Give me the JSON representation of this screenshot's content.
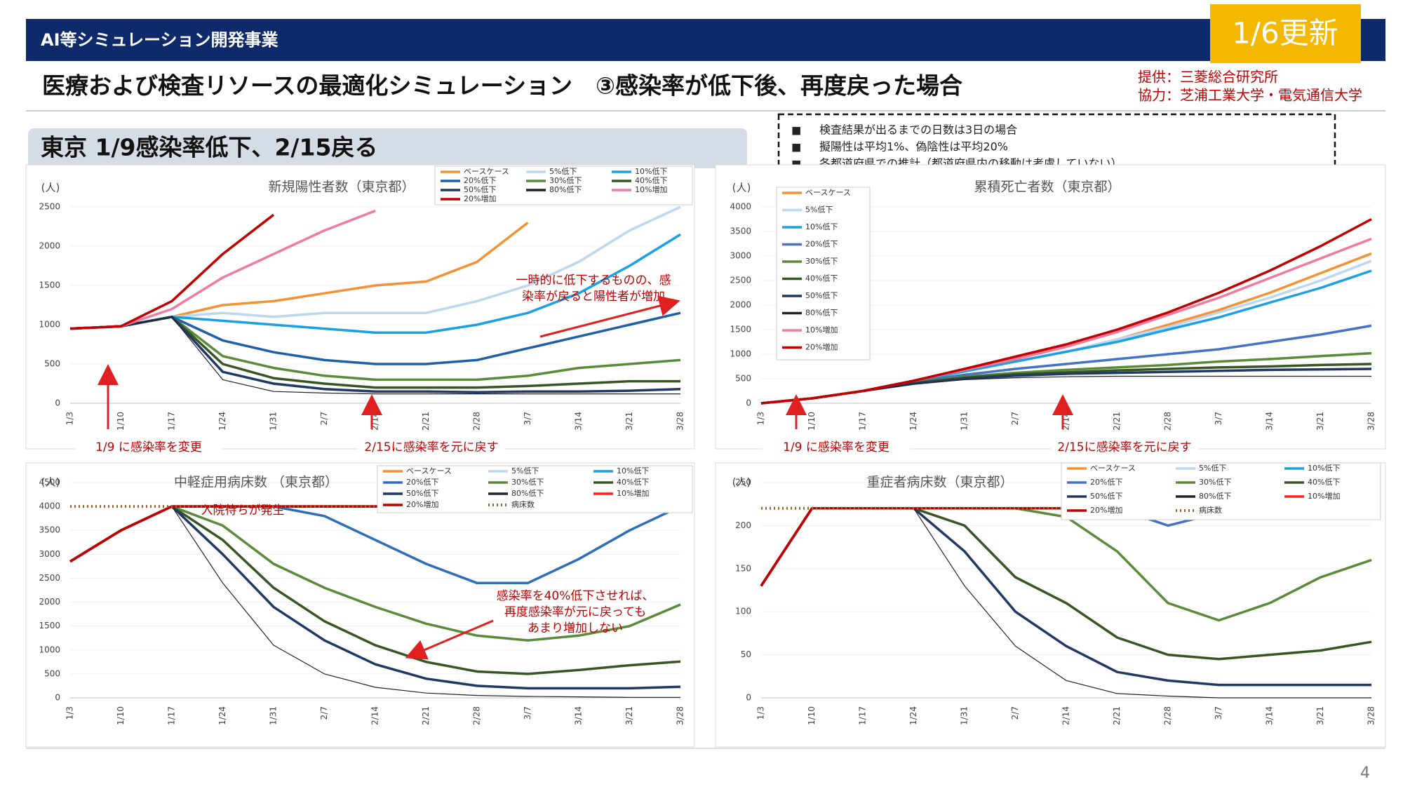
{
  "header": {
    "program": "AI等シミュレーション開発事業",
    "badge": "1/6更新",
    "title": "医療および検査リソースの最適化シミュレーション　③感染率が低下後、再度戻った場合",
    "provider": "提供：三菱総合研究所",
    "cooperation": "協力：芝浦工業大学・電気通信大学",
    "section": "東京 1/9感染率低下、2/15戻る",
    "page": "4"
  },
  "notes": [
    "検査結果が出るまでの日数は3日の場合",
    "擬陽性は平均1%、偽陰性は平均20%",
    "各都道府県での推計（都道府県内の移動は考慮していない）"
  ],
  "chart_data": [
    {
      "type": "line",
      "title": "新規陽性者数（東京都）",
      "y_label": "(人)",
      "categories": [
        "1/3",
        "1/10",
        "1/17",
        "1/24",
        "1/31",
        "2/7",
        "2/14",
        "2/21",
        "2/28",
        "3/7",
        "3/14",
        "3/21",
        "3/28"
      ],
      "ylim": [
        0,
        2500
      ],
      "yticks": [
        0,
        500,
        1000,
        1500,
        2000,
        2500
      ],
      "series": [
        {
          "name": "ベースケース",
          "color": "#f39235",
          "values": [
            950,
            980,
            1100,
            1250,
            1300,
            1400,
            1500,
            1550,
            1800,
            2300,
            null,
            null,
            null
          ]
        },
        {
          "name": "5%低下",
          "color": "#bdd7ee",
          "values": [
            950,
            980,
            1100,
            1150,
            1100,
            1150,
            1150,
            1150,
            1300,
            1500,
            1800,
            2200,
            2500
          ]
        },
        {
          "name": "10%低下",
          "color": "#1ba1e2",
          "values": [
            950,
            980,
            1100,
            1050,
            1000,
            950,
            900,
            900,
            1000,
            1150,
            1400,
            1750,
            2150
          ]
        },
        {
          "name": "20%低下",
          "color": "#1f5fa8",
          "values": [
            950,
            980,
            1100,
            800,
            650,
            550,
            500,
            500,
            550,
            700,
            850,
            1000,
            1150
          ]
        },
        {
          "name": "30%低下",
          "color": "#5a8a3a",
          "values": [
            950,
            980,
            1100,
            600,
            450,
            350,
            300,
            300,
            300,
            350,
            450,
            500,
            550
          ]
        },
        {
          "name": "40%低下",
          "color": "#375623",
          "values": [
            950,
            980,
            1100,
            500,
            320,
            250,
            200,
            200,
            200,
            220,
            250,
            280,
            280
          ]
        },
        {
          "name": "50%低下",
          "color": "#1f3864",
          "values": [
            950,
            980,
            1100,
            400,
            250,
            180,
            150,
            150,
            140,
            150,
            150,
            160,
            180
          ]
        },
        {
          "name": "80%低下",
          "color": "#222222",
          "values": [
            950,
            980,
            1100,
            300,
            150,
            130,
            120,
            120,
            120,
            120,
            120,
            120,
            120
          ]
        },
        {
          "name": "10%増加",
          "color": "#f07ba0",
          "values": [
            950,
            980,
            1200,
            1600,
            1900,
            2200,
            2450,
            null,
            null,
            null,
            null,
            null,
            null
          ]
        },
        {
          "name": "20%増加",
          "color": "#c00000",
          "values": [
            950,
            980,
            1300,
            1900,
            2400,
            null,
            null,
            null,
            null,
            null,
            null,
            null,
            null
          ]
        }
      ],
      "annotations": [
        "1/9 に感染率を変更",
        "2/15に感染率を元に戻す",
        "一時的に低下するものの、感",
        "染率が戻ると陽性者が増加"
      ]
    },
    {
      "type": "line",
      "title": "累積死亡者数（東京都）",
      "y_label": "(人)",
      "categories": [
        "1/3",
        "1/10",
        "1/17",
        "1/24",
        "1/31",
        "2/7",
        "2/14",
        "2/21",
        "2/28",
        "3/7",
        "3/14",
        "3/21",
        "3/28"
      ],
      "ylim": [
        0,
        4000
      ],
      "yticks": [
        0,
        500,
        1000,
        1500,
        2000,
        2500,
        3000,
        3500,
        4000
      ],
      "series": [
        {
          "name": "ベースケース",
          "color": "#f39235",
          "values": [
            0,
            100,
            250,
            450,
            650,
            850,
            1050,
            1300,
            1600,
            1900,
            2250,
            2650,
            3050
          ]
        },
        {
          "name": "5%低下",
          "color": "#bdd7ee",
          "values": [
            0,
            100,
            250,
            450,
            650,
            850,
            1050,
            1300,
            1550,
            1850,
            2150,
            2500,
            2900
          ]
        },
        {
          "name": "10%低下",
          "color": "#1ba1e2",
          "values": [
            0,
            100,
            250,
            450,
            650,
            850,
            1050,
            1250,
            1500,
            1750,
            2050,
            2350,
            2700
          ]
        },
        {
          "name": "20%低下",
          "color": "#4472c4",
          "values": [
            0,
            100,
            250,
            430,
            580,
            700,
            800,
            900,
            1000,
            1100,
            1250,
            1400,
            1580
          ]
        },
        {
          "name": "30%低下",
          "color": "#5a8a3a",
          "values": [
            0,
            100,
            250,
            420,
            540,
            620,
            680,
            730,
            780,
            850,
            900,
            960,
            1020
          ]
        },
        {
          "name": "40%低下",
          "color": "#375623",
          "values": [
            0,
            100,
            250,
            410,
            520,
            590,
            630,
            670,
            700,
            730,
            750,
            780,
            800
          ]
        },
        {
          "name": "50%低下",
          "color": "#1f3864",
          "values": [
            0,
            100,
            250,
            400,
            500,
            560,
            600,
            620,
            640,
            660,
            680,
            690,
            700
          ]
        },
        {
          "name": "80%低下",
          "color": "#222222",
          "values": [
            0,
            100,
            250,
            390,
            480,
            520,
            540,
            550,
            550,
            550,
            550,
            550,
            550
          ]
        },
        {
          "name": "10%増加",
          "color": "#f07ba0",
          "values": [
            0,
            100,
            250,
            460,
            680,
            900,
            1150,
            1450,
            1800,
            2150,
            2550,
            2950,
            3350
          ]
        },
        {
          "name": "20%増加",
          "color": "#c00000",
          "values": [
            0,
            100,
            250,
            460,
            700,
            950,
            1200,
            1500,
            1850,
            2250,
            2700,
            3200,
            3750
          ]
        }
      ],
      "annotations": [
        "1/9 に感染率を変更",
        "2/15に感染率を元に戻す"
      ]
    },
    {
      "type": "line",
      "title": "中軽症用病床数 （東京都）",
      "y_label": "(人)",
      "categories": [
        "1/3",
        "1/10",
        "1/17",
        "1/24",
        "1/31",
        "2/7",
        "2/14",
        "2/21",
        "2/28",
        "3/7",
        "3/14",
        "3/21",
        "3/28"
      ],
      "ylim": [
        0,
        4500
      ],
      "yticks": [
        0,
        500,
        1000,
        1500,
        2000,
        2500,
        3000,
        3500,
        4000,
        4500
      ],
      "series": [
        {
          "name": "ベースケース",
          "color": "#f39235",
          "values": [
            2850,
            3500,
            4000,
            4000,
            4000,
            4000,
            4000,
            4000,
            4000,
            4000,
            4000,
            4000,
            4000
          ]
        },
        {
          "name": "5%低下",
          "color": "#bdd7ee",
          "values": [
            2850,
            3500,
            4000,
            4000,
            4000,
            4000,
            4000,
            4000,
            4000,
            4000,
            4000,
            4000,
            4000
          ]
        },
        {
          "name": "10%低下",
          "color": "#1ba1e2",
          "values": [
            2850,
            3500,
            4000,
            4000,
            4000,
            4000,
            4000,
            4000,
            4000,
            4000,
            4000,
            4000,
            4000
          ]
        },
        {
          "name": "20%低下",
          "color": "#2e6db8",
          "values": [
            2850,
            3500,
            4000,
            4000,
            4000,
            3800,
            3300,
            2800,
            2400,
            2400,
            2900,
            3500,
            4000
          ]
        },
        {
          "name": "30%低下",
          "color": "#5a8a3a",
          "values": [
            2850,
            3500,
            4000,
            3600,
            2800,
            2300,
            1900,
            1550,
            1300,
            1200,
            1300,
            1500,
            1950
          ]
        },
        {
          "name": "40%低下",
          "color": "#375623",
          "values": [
            2850,
            3500,
            4000,
            3300,
            2300,
            1600,
            1100,
            750,
            550,
            500,
            580,
            680,
            760
          ]
        },
        {
          "name": "50%低下",
          "color": "#1f3864",
          "values": [
            2850,
            3500,
            4000,
            3000,
            1900,
            1200,
            700,
            400,
            250,
            200,
            200,
            200,
            230
          ]
        },
        {
          "name": "80%低下",
          "color": "#222222",
          "values": [
            2850,
            3500,
            4000,
            2400,
            1100,
            500,
            220,
            100,
            50,
            30,
            20,
            10,
            10
          ]
        },
        {
          "name": "10%増加",
          "color": "#ff2020",
          "values": [
            2850,
            3500,
            4000,
            4000,
            4000,
            4000,
            4000,
            4000,
            4000,
            4000,
            4000,
            4000,
            4000
          ]
        },
        {
          "name": "20%増加",
          "color": "#c00000",
          "values": [
            2850,
            3500,
            4000,
            4000,
            4000,
            4000,
            4000,
            4000,
            4000,
            4000,
            4000,
            4000,
            4000
          ]
        },
        {
          "name": "病床数",
          "color": "#a0622d",
          "dashed": true,
          "values": [
            4000,
            4000,
            4000,
            4000,
            4000,
            4000,
            4000,
            4000,
            4000,
            4000,
            4000,
            4000,
            4000
          ]
        }
      ],
      "annotations": [
        "入院待ちが発生",
        "感染率を40%低下させれば、",
        "再度感染率が元に戻っても",
        "あまり増加しない"
      ]
    },
    {
      "type": "line",
      "title": "重症者病床数（東京都）",
      "y_label": "(人)",
      "categories": [
        "1/3",
        "1/10",
        "1/17",
        "1/24",
        "1/31",
        "2/7",
        "2/14",
        "2/21",
        "2/28",
        "3/7",
        "3/14",
        "3/21",
        "3/28"
      ],
      "ylim": [
        0,
        250
      ],
      "yticks": [
        0,
        50,
        100,
        150,
        200,
        250
      ],
      "series": [
        {
          "name": "ベースケース",
          "color": "#f39235",
          "values": [
            130,
            220,
            220,
            220,
            220,
            220,
            220,
            220,
            220,
            220,
            220,
            220,
            220
          ]
        },
        {
          "name": "5%低下",
          "color": "#bdd7ee",
          "values": [
            130,
            220,
            220,
            220,
            220,
            220,
            220,
            220,
            220,
            220,
            220,
            220,
            220
          ]
        },
        {
          "name": "10%低下",
          "color": "#1ba1e2",
          "values": [
            130,
            220,
            220,
            220,
            220,
            220,
            220,
            220,
            220,
            220,
            220,
            220,
            220
          ]
        },
        {
          "name": "20%低下",
          "color": "#4472c4",
          "values": [
            130,
            220,
            220,
            220,
            220,
            220,
            220,
            220,
            200,
            215,
            220,
            220,
            220
          ]
        },
        {
          "name": "30%低下",
          "color": "#5a8a3a",
          "values": [
            130,
            220,
            220,
            220,
            220,
            220,
            210,
            170,
            110,
            90,
            110,
            140,
            160
          ]
        },
        {
          "name": "40%低下",
          "color": "#375623",
          "values": [
            130,
            220,
            220,
            220,
            200,
            140,
            110,
            70,
            50,
            45,
            50,
            55,
            65
          ]
        },
        {
          "name": "50%低下",
          "color": "#1f3864",
          "values": [
            130,
            220,
            220,
            220,
            170,
            100,
            60,
            30,
            20,
            15,
            15,
            15,
            15
          ]
        },
        {
          "name": "80%低下",
          "color": "#222222",
          "values": [
            130,
            220,
            220,
            220,
            130,
            60,
            20,
            5,
            2,
            0,
            0,
            0,
            0
          ]
        },
        {
          "name": "10%増加",
          "color": "#ff2020",
          "values": [
            130,
            220,
            220,
            220,
            220,
            220,
            220,
            220,
            220,
            220,
            220,
            220,
            220
          ]
        },
        {
          "name": "20%増加",
          "color": "#c00000",
          "values": [
            130,
            220,
            220,
            220,
            220,
            220,
            220,
            220,
            220,
            220,
            220,
            220,
            220
          ]
        },
        {
          "name": "病床数",
          "color": "#a0622d",
          "dashed": true,
          "values": [
            220,
            220,
            220,
            220,
            220,
            220,
            220,
            220,
            220,
            220,
            220,
            220,
            220
          ]
        }
      ]
    }
  ]
}
